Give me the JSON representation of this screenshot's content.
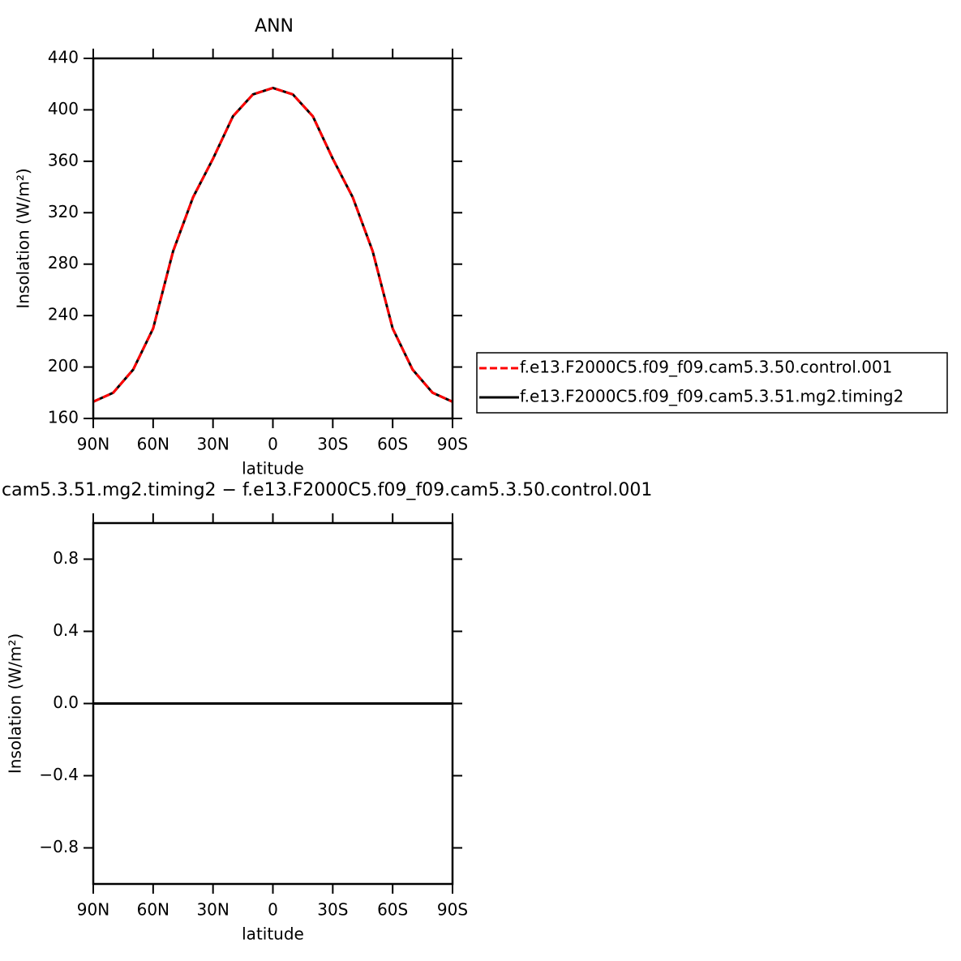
{
  "chart_data": [
    {
      "type": "line",
      "title": "ANN",
      "xlabel": "latitude",
      "ylabel": "Insolation (W/m²)",
      "x": [
        90,
        80,
        70,
        60,
        50,
        40,
        30,
        20,
        10,
        0,
        -10,
        -20,
        -30,
        -40,
        -50,
        -60,
        -70,
        -80,
        -90
      ],
      "series": [
        {
          "name": "f.e13.F2000C5.f09_f09.cam5.3.51.mg2.timing2",
          "color": "#000000",
          "dash": false,
          "values": [
            173,
            180,
            198,
            230,
            290,
            332,
            362,
            395,
            412,
            417,
            412,
            395,
            362,
            332,
            290,
            230,
            198,
            180,
            173
          ]
        },
        {
          "name": "f.e13.F2000C5.f09_f09.cam5.3.50.control.001",
          "color": "#ff0000",
          "dash": true,
          "values": [
            173,
            180,
            198,
            230,
            290,
            332,
            362,
            395,
            412,
            417,
            412,
            395,
            362,
            332,
            290,
            230,
            198,
            180,
            173
          ]
        }
      ],
      "xlim": [
        90,
        -90
      ],
      "xticks": [
        {
          "value": 90,
          "label": "90N"
        },
        {
          "value": 60,
          "label": "60N"
        },
        {
          "value": 30,
          "label": "30N"
        },
        0,
        {
          "value": -30,
          "label": "30S"
        },
        {
          "value": -60,
          "label": "60S"
        },
        {
          "value": -90,
          "label": "90S"
        }
      ],
      "ylim": [
        160,
        440
      ],
      "yticks": [
        160,
        200,
        240,
        280,
        320,
        360,
        400,
        440
      ],
      "legend": "right"
    },
    {
      "type": "line",
      "title": "cam5.3.51.mg2.timing2 − f.e13.F2000C5.f09_f09.cam5.3.50.control.001",
      "xlabel": "latitude",
      "ylabel": "Insolation (W/m²)",
      "x": [
        90,
        60,
        30,
        0,
        -30,
        -60,
        -90
      ],
      "series": [
        {
          "color": "#000000",
          "dash": false,
          "values": [
            0,
            0,
            0,
            0,
            0,
            0,
            0
          ]
        }
      ],
      "xlim": [
        90,
        -90
      ],
      "xticks": [
        {
          "value": 90,
          "label": "90N"
        },
        {
          "value": 60,
          "label": "60N"
        },
        {
          "value": 30,
          "label": "30N"
        },
        0,
        {
          "value": -30,
          "label": "30S"
        },
        {
          "value": -60,
          "label": "60S"
        },
        {
          "value": -90,
          "label": "90S"
        }
      ],
      "ylim": [
        -1,
        1
      ],
      "yticks": [
        {
          "value": -0.8,
          "label": "−0.8"
        },
        {
          "value": -0.4,
          "label": "−0.4"
        },
        {
          "value": 0,
          "label": "0.0"
        },
        0.4,
        0.8
      ]
    }
  ]
}
